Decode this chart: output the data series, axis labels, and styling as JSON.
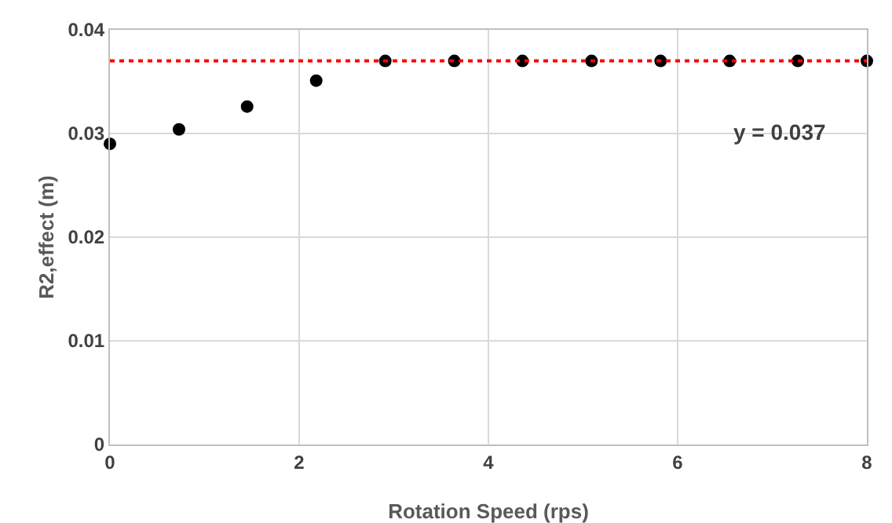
{
  "chart_data": {
    "type": "scatter",
    "xlabel": "Rotation Speed (rps)",
    "ylabel": "R2,effect (m)",
    "x": [
      0,
      0.73,
      1.45,
      2.18,
      2.91,
      3.64,
      4.36,
      5.09,
      5.82,
      6.55,
      7.27,
      8
    ],
    "series": [
      {
        "color": "#000000",
        "values": [
          0.029,
          0.0304,
          0.0326,
          0.0351,
          0.037,
          0.037,
          0.037,
          0.037,
          0.037,
          0.037,
          0.037,
          0.037
        ]
      }
    ],
    "xlim": [
      0,
      8
    ],
    "xticks": [
      0,
      2,
      4,
      6,
      8
    ],
    "ylim": [
      0,
      0.04
    ],
    "yticks": [
      0,
      0.01,
      0.02,
      0.03,
      0.04
    ],
    "grid": true,
    "marker": "circle",
    "ref_lines": [
      {
        "axis": "y",
        "value": 0.037,
        "label": "y = 0.037",
        "color": "#ff0000",
        "line_style": "dotted"
      }
    ]
  }
}
